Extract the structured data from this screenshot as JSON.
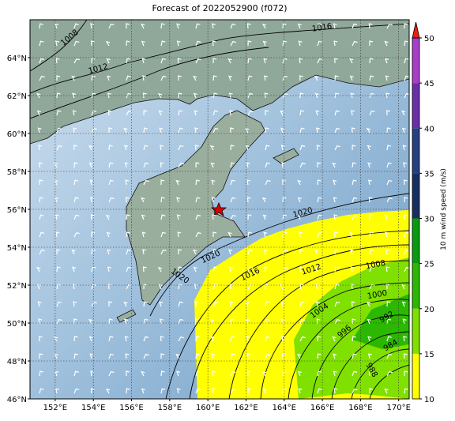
{
  "title": "Forecast of 2022052900 (f072)",
  "map": {
    "xlim": [
      150.68,
      170.55
    ],
    "ylim": [
      46,
      66
    ],
    "xticks": [
      {
        "value": 152,
        "label": "152°E"
      },
      {
        "value": 154,
        "label": "154°E"
      },
      {
        "value": 156,
        "label": "156°E"
      },
      {
        "value": 158,
        "label": "158°E"
      },
      {
        "value": 160,
        "label": "160°E"
      },
      {
        "value": 162,
        "label": "162°E"
      },
      {
        "value": 164,
        "label": "164°E"
      },
      {
        "value": 166,
        "label": "166°E"
      },
      {
        "value": 168,
        "label": "168°E"
      },
      {
        "value": 170,
        "label": "170°E"
      }
    ],
    "yticks": [
      {
        "value": 46,
        "label": "46°N"
      },
      {
        "value": 48,
        "label": "48°N"
      },
      {
        "value": 50,
        "label": "50°N"
      },
      {
        "value": 52,
        "label": "52°N"
      },
      {
        "value": 54,
        "label": "54°N"
      },
      {
        "value": 56,
        "label": "56°N"
      },
      {
        "value": 58,
        "label": "58°N"
      },
      {
        "value": 60,
        "label": "60°N"
      },
      {
        "value": 62,
        "label": "62°N"
      },
      {
        "value": 64,
        "label": "64°N"
      }
    ],
    "grid": true,
    "contour_labels": [
      "1008",
      "1012",
      "1016",
      "1020",
      "1020",
      "1020",
      "1016",
      "1012",
      "1008",
      "1000",
      "1004",
      "996",
      "992",
      "984",
      "988"
    ]
  },
  "colorbar": {
    "label": "10 m wind speed (m/s)",
    "clim": [
      10,
      50
    ],
    "ticks": [
      10,
      15,
      20,
      25,
      30,
      35,
      40,
      45,
      50
    ],
    "colors": [
      "#ffff00",
      "#80e000",
      "#2cb800",
      "#0a9a10",
      "#172f5e",
      "#253f80",
      "#6a2fa8",
      "#a83ec8"
    ],
    "extend_color": "#e82010"
  }
}
